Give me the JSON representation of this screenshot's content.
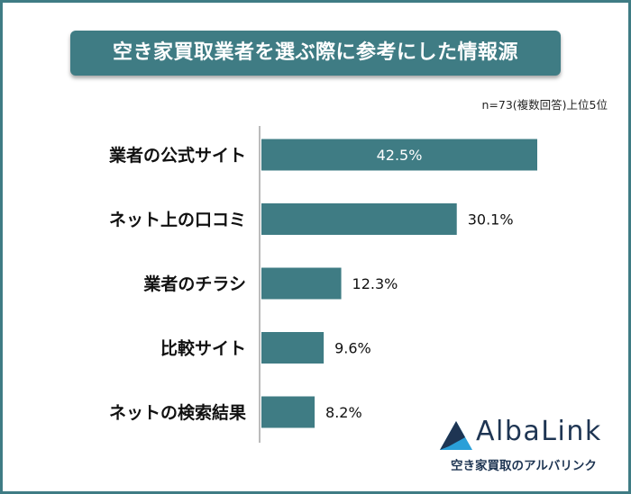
{
  "header": {
    "title": "空き家買取業者を選ぶ際に参考にした情報源"
  },
  "note": "n=73(複数回答)上位5位",
  "chart_data": {
    "type": "bar",
    "orientation": "horizontal",
    "title": "空き家買取業者を選ぶ際に参考にした情報源",
    "categories": [
      "業者の公式サイト",
      "ネット上の口コミ",
      "業者のチラシ",
      "比較サイト",
      "ネットの検索結果"
    ],
    "values": [
      42.5,
      30.1,
      12.3,
      9.6,
      8.2
    ],
    "value_labels": [
      "42.5%",
      "30.1%",
      "12.3%",
      "9.6%",
      "8.2%"
    ],
    "unit": "%",
    "xlim": [
      0,
      50
    ],
    "grid": false,
    "legend": "none",
    "bar_color": "#3f7c84"
  },
  "logo": {
    "name": "AlbaLink",
    "subtitle": "空き家買取のアルバリンク",
    "color": "#1e3553",
    "accent": "#2a9fd8"
  }
}
